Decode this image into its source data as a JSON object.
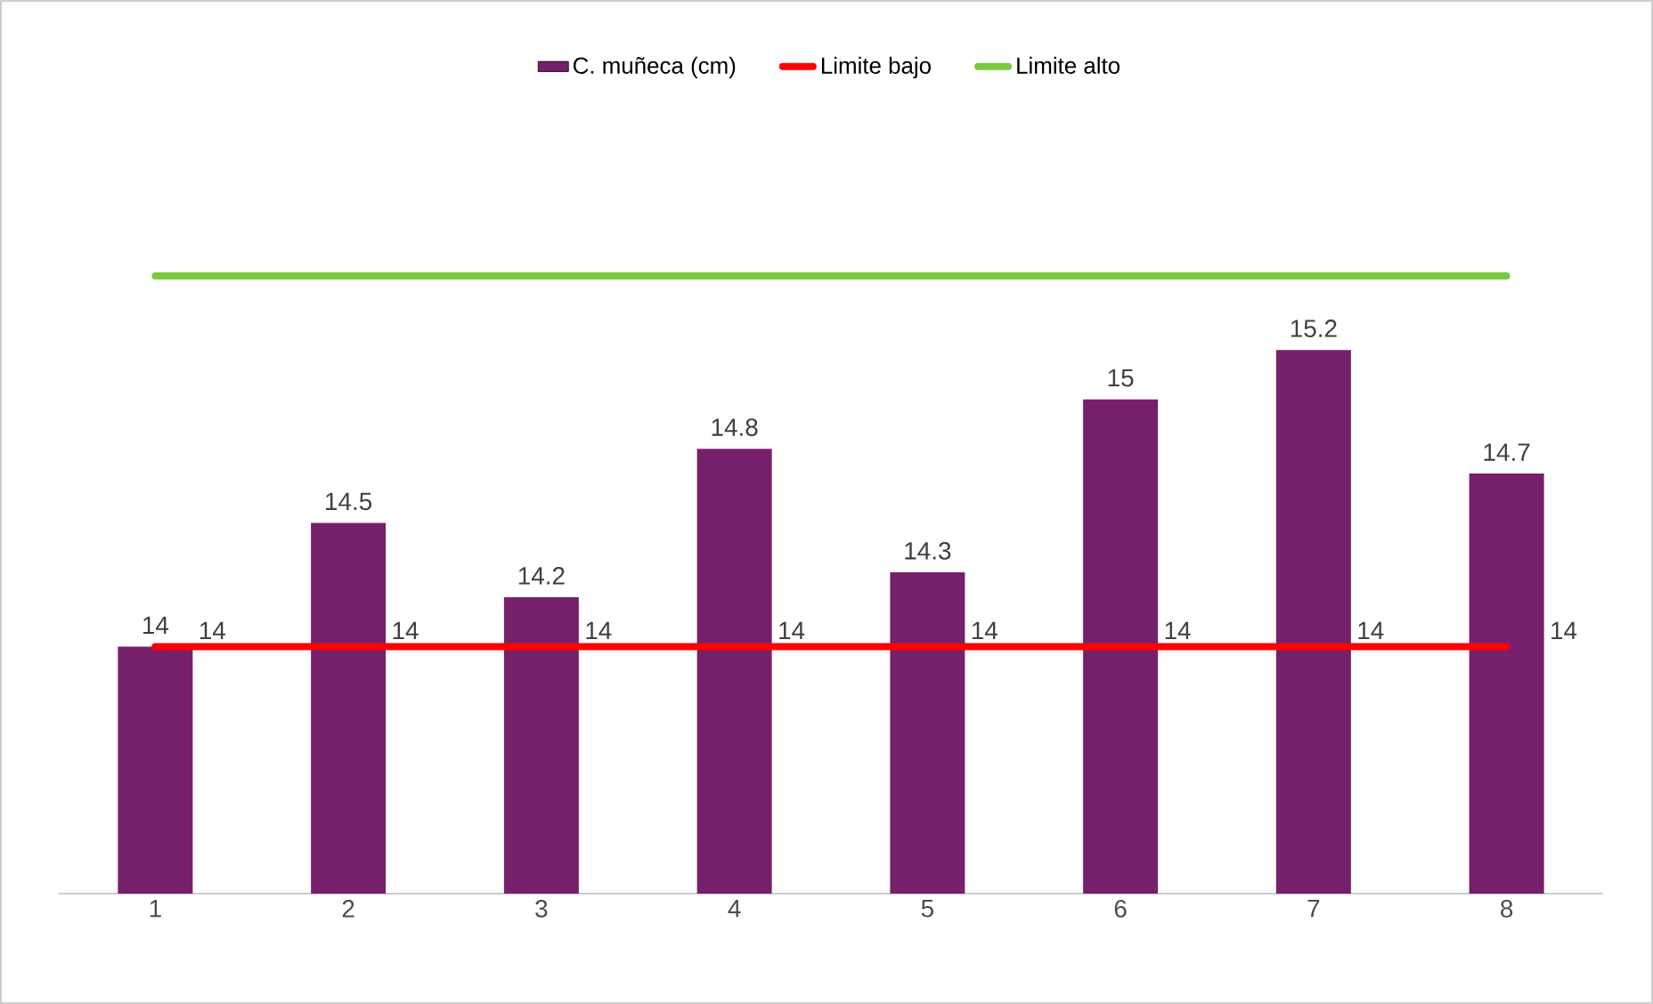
{
  "chart_data": {
    "type": "bar",
    "categories": [
      "1",
      "2",
      "3",
      "4",
      "5",
      "6",
      "7",
      "8"
    ],
    "series": [
      {
        "name": "C. muñeca (cm)",
        "color": "#76206b",
        "values": [
          14,
          14.5,
          14.2,
          14.8,
          14.3,
          15,
          15.2,
          14.7
        ],
        "value_labels": [
          "14",
          "14.5",
          "14.2",
          "14.8",
          "14.3",
          "15",
          "15.2",
          "14.7"
        ]
      },
      {
        "name": "Limite bajo",
        "type": "line",
        "color": "#ff0000",
        "values": [
          14,
          14,
          14,
          14,
          14,
          14,
          14,
          14
        ],
        "value_labels": [
          "14",
          "14",
          "14",
          "14",
          "14",
          "14",
          "14",
          "14"
        ]
      },
      {
        "name": "Limite alto",
        "type": "line",
        "color": "#7ac943",
        "values": [
          15.5,
          15.5,
          15.5,
          15.5,
          15.5,
          15.5,
          15.5,
          15.5
        ]
      }
    ],
    "ylim": [
      13,
      15.5
    ],
    "tick_labels": "x",
    "legend": "top",
    "marker": "none",
    "line_style": "solid"
  }
}
